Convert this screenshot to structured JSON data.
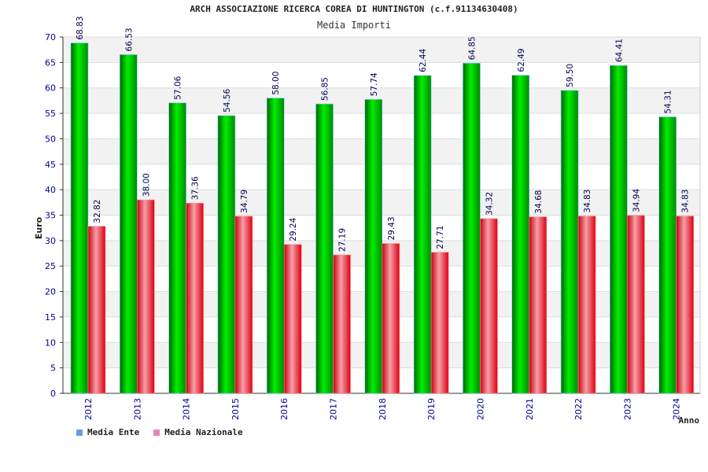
{
  "chart_data": {
    "type": "bar",
    "title": "ARCH ASSOCIAZIONE RICERCA COREA DI HUNTINGTON (c.f.91134630408)",
    "subtitle": "Media Importi",
    "xlabel": "Anno",
    "ylabel": "Euro",
    "ylim": [
      0,
      70
    ],
    "yticks": [
      0,
      5,
      10,
      15,
      20,
      25,
      30,
      35,
      40,
      45,
      50,
      55,
      60,
      65,
      70
    ],
    "grid": true,
    "legend_position": "bottom-left",
    "categories": [
      "2012",
      "2013",
      "2014",
      "2015",
      "2016",
      "2017",
      "2018",
      "2019",
      "2020",
      "2021",
      "2022",
      "2023",
      "2024"
    ],
    "series": [
      {
        "name": "Media Ente",
        "color": "#00cc00",
        "legend_color": "#6699ee",
        "values": [
          68.83,
          66.53,
          57.06,
          54.56,
          58.0,
          56.85,
          57.74,
          62.44,
          64.85,
          62.49,
          59.5,
          64.41,
          54.31
        ],
        "labels": [
          "68.83",
          "66.53",
          "57.06",
          "54.56",
          "58.00",
          "56.85",
          "57.74",
          "62.44",
          "64.85",
          "62.49",
          "59.50",
          "64.41",
          "54.31"
        ]
      },
      {
        "name": "Media Nazionale",
        "color": "#ee2233",
        "legend_color": "#dd88bb",
        "values": [
          32.82,
          38.0,
          37.36,
          34.79,
          29.24,
          27.19,
          29.43,
          27.71,
          34.32,
          34.68,
          34.83,
          34.94,
          34.83
        ],
        "labels": [
          "32.82",
          "38.00",
          "37.36",
          "34.79",
          "29.24",
          "27.19",
          "29.43",
          "27.71",
          "34.32",
          "34.68",
          "34.83",
          "34.94",
          "34.83"
        ]
      }
    ]
  }
}
